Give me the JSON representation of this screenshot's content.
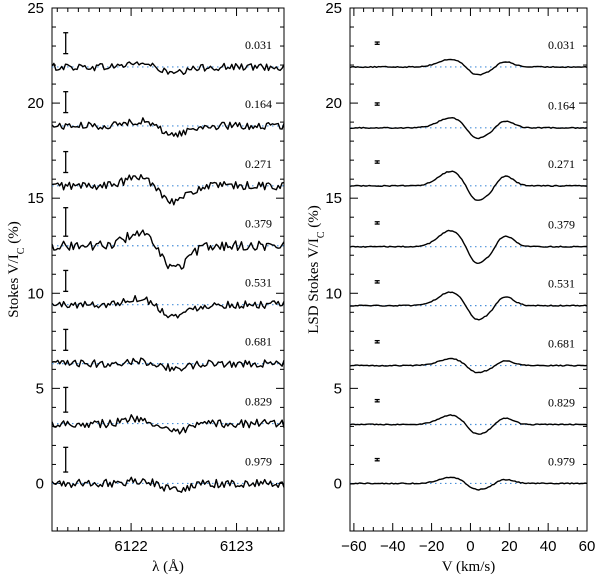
{
  "colors": {
    "baseline": "#4a90d9",
    "profile": "#000000"
  },
  "chart_data": [
    {
      "type": "line",
      "panel": "left",
      "xlabel_html": [
        "λ (Å)"
      ],
      "ylabel": "Stokes V/I",
      "ylabel_sub": "C",
      "ylabel_suffix": " (%)",
      "xlim": [
        6121.25,
        6123.45
      ],
      "ylim": [
        -2.5,
        25
      ],
      "xticks": [
        6122,
        6123
      ],
      "xticklabels": [
        "6122",
        "6123"
      ],
      "yticks": [
        0,
        5,
        10,
        15,
        20,
        25
      ],
      "yticklabels": [
        "0",
        "5",
        "10",
        "15",
        "20",
        "25"
      ],
      "errorbar_x": 6121.38,
      "feature_center": 6122.3,
      "series": [
        {
          "phase": "0.031",
          "offset": 21.9,
          "errbar": 0.55,
          "amp": 0.35,
          "noise": 0.35
        },
        {
          "phase": "0.164",
          "offset": 18.8,
          "errbar": 0.55,
          "amp": 0.45,
          "noise": 0.35
        },
        {
          "phase": "0.271",
          "offset": 15.65,
          "errbar": 0.55,
          "amp": 0.8,
          "noise": 0.4
        },
        {
          "phase": "0.379",
          "offset": 12.5,
          "errbar": 0.75,
          "amp": 1.2,
          "noise": 0.45
        },
        {
          "phase": "0.531",
          "offset": 9.4,
          "errbar": 0.55,
          "amp": 0.6,
          "noise": 0.35
        },
        {
          "phase": "0.681",
          "offset": 6.3,
          "errbar": 0.55,
          "amp": 0.25,
          "noise": 0.35
        },
        {
          "phase": "0.829",
          "offset": 3.15,
          "errbar": 0.65,
          "amp": 0.5,
          "noise": 0.4
        },
        {
          "phase": "0.979",
          "offset": 0.0,
          "errbar": 0.65,
          "amp": 0.3,
          "noise": 0.4
        }
      ]
    },
    {
      "type": "line",
      "panel": "right",
      "xlabel_html": [
        "V (km/s)"
      ],
      "ylabel": "LSD Stokes V/I",
      "ylabel_sub": "C",
      "ylabel_suffix": " (%)",
      "xlim": [
        -62,
        60
      ],
      "ylim": [
        -2.5,
        25
      ],
      "xticks": [
        -60,
        -40,
        -20,
        0,
        20,
        40,
        60
      ],
      "xticklabels": [
        "−60",
        "−40",
        "−20",
        "0",
        "20",
        "40",
        "60"
      ],
      "yticks": [
        0,
        5,
        10,
        15,
        20,
        25
      ],
      "yticklabels": [
        "0",
        "5",
        "10",
        "15",
        "20",
        "25"
      ],
      "errorbar_x": -48,
      "series": [
        {
          "phase": "0.031",
          "offset": 21.9,
          "errbar": 0.06,
          "amp": 0.45
        },
        {
          "phase": "0.164",
          "offset": 18.7,
          "errbar": 0.06,
          "amp": 0.6
        },
        {
          "phase": "0.271",
          "offset": 15.65,
          "errbar": 0.06,
          "amp": 0.85
        },
        {
          "phase": "0.379",
          "offset": 12.45,
          "errbar": 0.06,
          "amp": 0.95
        },
        {
          "phase": "0.531",
          "offset": 9.35,
          "errbar": 0.06,
          "amp": 0.8
        },
        {
          "phase": "0.681",
          "offset": 6.2,
          "errbar": 0.06,
          "amp": 0.4
        },
        {
          "phase": "0.829",
          "offset": 3.1,
          "errbar": 0.06,
          "amp": 0.55
        },
        {
          "phase": "0.979",
          "offset": 0.0,
          "errbar": 0.06,
          "amp": 0.35
        }
      ]
    }
  ]
}
